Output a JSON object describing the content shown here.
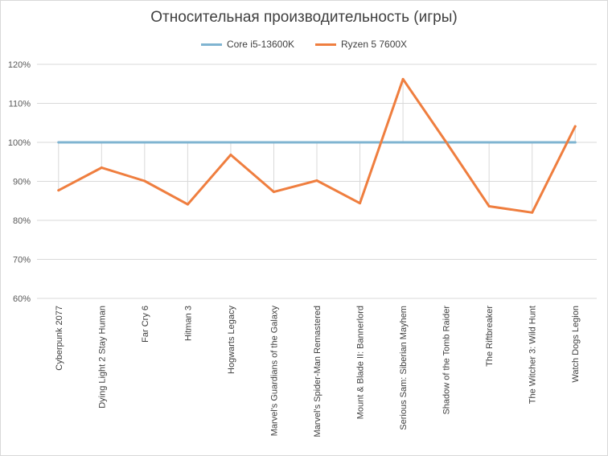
{
  "chart_data": {
    "type": "line",
    "title": "Относительная производительность (игры)",
    "xlabel": "",
    "ylabel": "",
    "ylim": [
      60,
      120
    ],
    "y_ticks": [
      "60%",
      "70%",
      "80%",
      "90%",
      "100%",
      "110%",
      "120%"
    ],
    "y_tick_values": [
      60,
      70,
      80,
      90,
      100,
      110,
      120
    ],
    "grid": true,
    "legend_position": "top",
    "categories": [
      "Cyberpunk 2077",
      "Dying Light 2 Stay Human",
      "Far Cry 6",
      "Hitman 3",
      "Hogwarts Legacy",
      "Marvel's Guardians of the Galaxy",
      "Marvel's Spider-Man Remastered",
      "Mount & Blade II: Bannerlord",
      "Serious Sam: Siberian Mayhem",
      "Shadow of the Tomb Raider",
      "The Riftbreaker",
      "The Witcher 3: Wild Hunt",
      "Watch Dogs Legion"
    ],
    "series": [
      {
        "name": "Core i5-13600K",
        "color": "#7fb4d1",
        "values": [
          100,
          100,
          100,
          100,
          100,
          100,
          100,
          100,
          100,
          100,
          100,
          100,
          100
        ]
      },
      {
        "name": "Ryzen 5 7600X",
        "color": "#ef7e3f",
        "values": [
          87.7,
          93.5,
          90.1,
          84.1,
          96.8,
          87.3,
          90.2,
          84.4,
          116.2,
          100.1,
          83.6,
          82.0,
          104.1
        ]
      }
    ],
    "drop_line_color": "#d9d9d9",
    "axis_color": "#d9d9d9"
  }
}
